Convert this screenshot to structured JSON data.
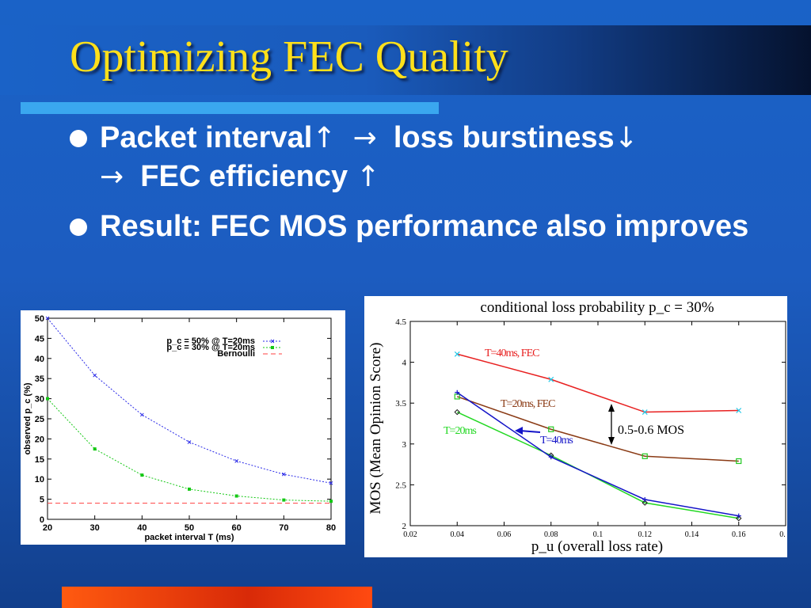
{
  "slide": {
    "title": "Optimizing FEC Quality",
    "bullets": [
      {
        "line1_a": "Packet interval",
        "line1_b": "loss burstiness",
        "line2": "FEC efficiency"
      },
      {
        "text": "Result: FEC MOS performance also improves"
      }
    ],
    "arrow_symbols": {
      "up": "↑",
      "down": "↓",
      "right": "→"
    }
  },
  "chart_data": [
    {
      "type": "line",
      "title": "",
      "xlabel": "packet interval T (ms)",
      "ylabel": "observed p_c (%)",
      "xlim": [
        20,
        80
      ],
      "ylim": [
        0,
        50
      ],
      "xticks": [
        20,
        30,
        40,
        50,
        60,
        70,
        80
      ],
      "yticks": [
        0,
        5,
        10,
        15,
        20,
        25,
        30,
        35,
        40,
        45,
        50
      ],
      "grid": false,
      "legend_position": "top-right",
      "series": [
        {
          "name": "p_c = 50% @ T=20ms",
          "color": "#2a2ae8",
          "x": [
            20,
            30,
            40,
            50,
            60,
            70,
            80
          ],
          "values": [
            50,
            35.8,
            26,
            19.2,
            14.5,
            11.2,
            9
          ]
        },
        {
          "name": "p_c = 30% @ T=20ms",
          "color": "#14c814",
          "x": [
            20,
            30,
            40,
            50,
            60,
            70,
            80
          ],
          "values": [
            30,
            17.5,
            11,
            7.5,
            5.8,
            4.8,
            4.5
          ]
        },
        {
          "name": "Bernoulli",
          "color": "#ff4040",
          "x": [
            20,
            80
          ],
          "values": [
            4,
            4
          ]
        }
      ]
    },
    {
      "type": "line",
      "title": "conditional loss probability p_c = 30%",
      "xlabel": "p_u (overall loss rate)",
      "ylabel": "MOS (Mean Opinion Score)",
      "xlim": [
        0.02,
        0.18
      ],
      "ylim": [
        2,
        4.5
      ],
      "xticks": [
        "0.02",
        "0.04",
        "0.06",
        "0.08",
        "0.1",
        "0.12",
        "0.14",
        "0.16",
        "0."
      ],
      "yticks": [
        "2",
        "2.5",
        "3",
        "3.5",
        "4",
        "4.5"
      ],
      "grid": false,
      "annotation": "0.5-0.6 MOS",
      "series": [
        {
          "name": "T=40ms, FEC",
          "color": "#e82020",
          "marker_color": "#22c8e8",
          "x": [
            0.04,
            0.08,
            0.12,
            0.16
          ],
          "values": [
            4.1,
            3.79,
            3.39,
            3.41
          ]
        },
        {
          "name": "T=20ms, FEC",
          "color": "#8a3a14",
          "marker_color": "#22c822",
          "x": [
            0.04,
            0.08,
            0.12,
            0.16
          ],
          "values": [
            3.58,
            3.18,
            2.85,
            2.79
          ]
        },
        {
          "name": "T=20ms",
          "color": "#22d822",
          "marker_color": "#111111",
          "x": [
            0.04,
            0.08,
            0.12,
            0.16
          ],
          "values": [
            3.39,
            2.86,
            2.28,
            2.09
          ]
        },
        {
          "name": "T=40ms",
          "color": "#1414c8",
          "marker_color": "#1414c8",
          "x": [
            0.04,
            0.08,
            0.12,
            0.16
          ],
          "values": [
            3.63,
            2.84,
            2.32,
            2.12
          ]
        }
      ]
    }
  ]
}
